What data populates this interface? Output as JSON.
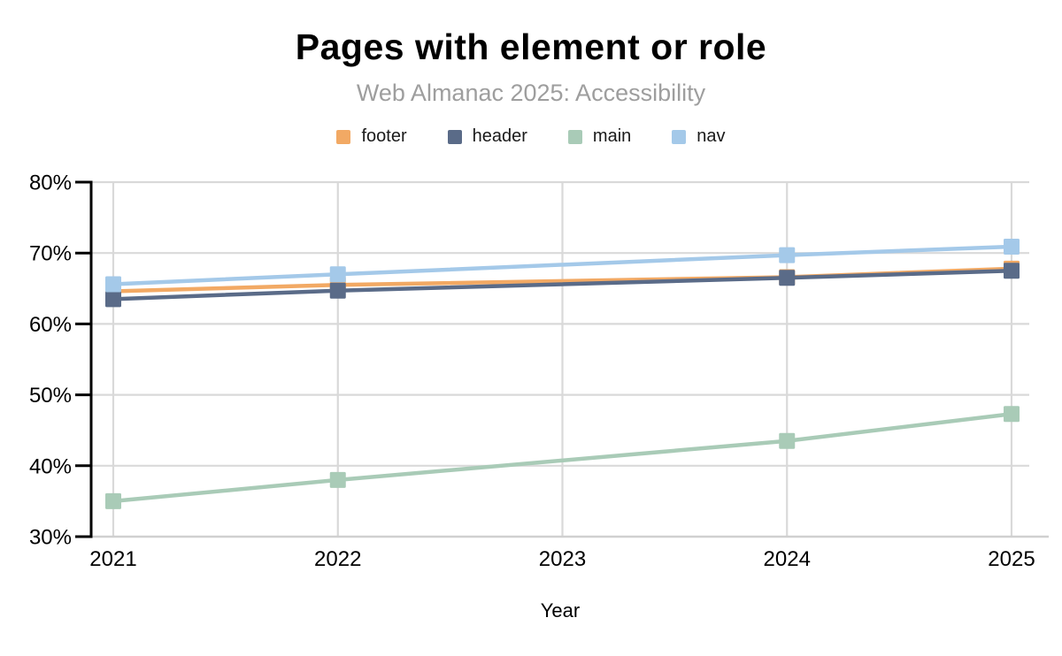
{
  "page": {
    "background": "#ffffff"
  },
  "chart": {
    "title": "Pages with element or role",
    "subtitle": "Web Almanac 2025: Accessibility",
    "xlabel": "Year"
  },
  "chart_data": {
    "type": "line",
    "title": "Pages with element or role",
    "subtitle": "Web Almanac 2025: Accessibility",
    "xlabel": "Year",
    "ylabel": "",
    "x_tick_labels": [
      "2021",
      "2022",
      "2023",
      "2024",
      "2025"
    ],
    "x_tick_values": [
      2021,
      2022,
      2023,
      2024,
      2025
    ],
    "x_range": [
      2021,
      2025
    ],
    "y_tick_labels": [
      "80%",
      "70%",
      "60%",
      "50%",
      "40%",
      "30%"
    ],
    "y_tick_values": [
      80,
      70,
      60,
      50,
      40,
      30
    ],
    "ylim": [
      30,
      80
    ],
    "grid": true,
    "legend_position": "top",
    "marker": "square",
    "series": [
      {
        "name": "footer",
        "color": "#F2A964",
        "x": [
          2021,
          2022,
          2024,
          2025
        ],
        "values": [
          64.6,
          65.5,
          66.6,
          67.8
        ]
      },
      {
        "name": "header",
        "color": "#5A6B88",
        "x": [
          2021,
          2022,
          2024,
          2025
        ],
        "values": [
          63.5,
          64.7,
          66.5,
          67.5
        ]
      },
      {
        "name": "main",
        "color": "#A9CBB7",
        "x": [
          2021,
          2022,
          2024,
          2025
        ],
        "values": [
          35.0,
          38.0,
          43.5,
          47.3
        ]
      },
      {
        "name": "nav",
        "color": "#A4C9E9",
        "x": [
          2021,
          2022,
          2024,
          2025
        ],
        "values": [
          65.6,
          67.0,
          69.7,
          70.9
        ]
      }
    ],
    "colors": {
      "gridline": "#D9D9D9",
      "axis": "#000000",
      "baseline": "#D0D0D0",
      "title": "#000000",
      "subtitle": "#9e9e9e"
    }
  }
}
